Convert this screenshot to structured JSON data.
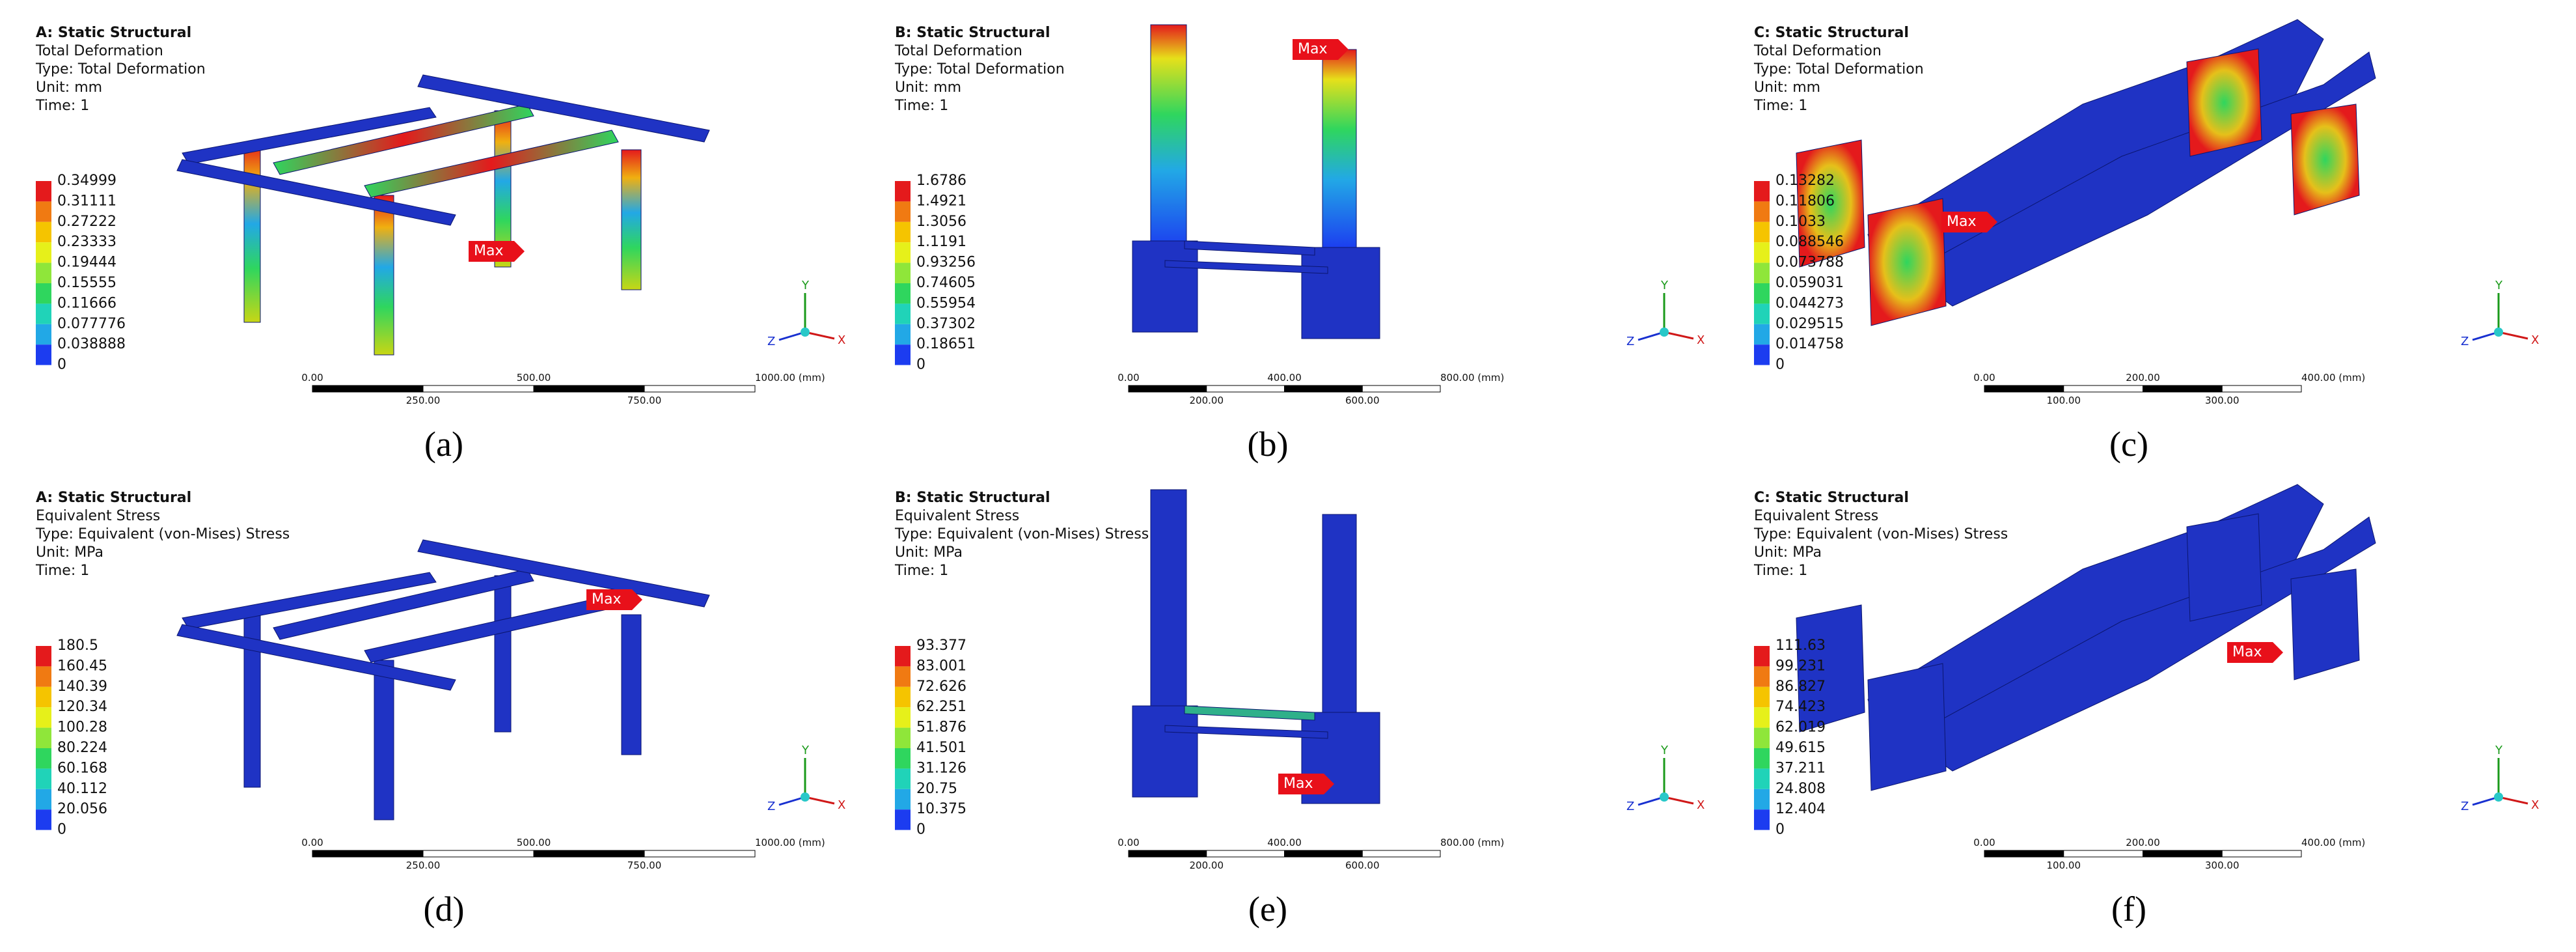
{
  "panels": [
    {
      "header": {
        "title": "A: Static Structural",
        "result": "Total Deformation",
        "type": "Type: Total Deformation",
        "unit": "Unit: mm",
        "time": "Time: 1"
      },
      "legend": [
        "0.34999",
        "0.31111",
        "0.27222",
        "0.23333",
        "0.19444",
        "0.15555",
        "0.11666",
        "0.077776",
        "0.038888",
        "0"
      ],
      "max_label": "Max",
      "scale_bar": {
        "top": [
          "0.00",
          "500.00",
          "1000.00 (mm)"
        ],
        "bottom": [
          "250.00",
          "750.00"
        ]
      },
      "triad": {
        "y": "Y",
        "z": "Z",
        "x": "X"
      },
      "caption": "(a)"
    },
    {
      "header": {
        "title": "B: Static Structural",
        "result": "Total Deformation",
        "type": "Type: Total Deformation",
        "unit": "Unit: mm",
        "time": "Time: 1"
      },
      "legend": [
        "1.6786",
        "1.4921",
        "1.3056",
        "1.1191",
        "0.93256",
        "0.74605",
        "0.55954",
        "0.37302",
        "0.18651",
        "0"
      ],
      "max_label": "Max",
      "scale_bar": {
        "top": [
          "0.00",
          "400.00",
          "800.00 (mm)"
        ],
        "bottom": [
          "200.00",
          "600.00"
        ]
      },
      "triad": {
        "y": "Y",
        "z": "Z",
        "x": "X"
      },
      "caption": "(b)"
    },
    {
      "header": {
        "title": "C: Static Structural",
        "result": "Total Deformation",
        "type": "Type: Total Deformation",
        "unit": "Unit: mm",
        "time": "Time: 1"
      },
      "legend": [
        "0.13282",
        "0.11806",
        "0.1033",
        "0.088546",
        "0.073788",
        "0.059031",
        "0.044273",
        "0.029515",
        "0.014758",
        "0"
      ],
      "max_label": "Max",
      "scale_bar": {
        "top": [
          "0.00",
          "200.00",
          "400.00 (mm)"
        ],
        "bottom": [
          "100.00",
          "300.00"
        ]
      },
      "triad": {
        "y": "Y",
        "z": "Z",
        "x": "X"
      },
      "caption": "(c)"
    },
    {
      "header": {
        "title": "A: Static Structural",
        "result": "Equivalent Stress",
        "type": "Type: Equivalent (von-Mises) Stress",
        "unit": "Unit: MPa",
        "time": "Time: 1"
      },
      "legend": [
        "180.5",
        "160.45",
        "140.39",
        "120.34",
        "100.28",
        "80.224",
        "60.168",
        "40.112",
        "20.056",
        "0"
      ],
      "max_label": "Max",
      "scale_bar": {
        "top": [
          "0.00",
          "500.00",
          "1000.00 (mm)"
        ],
        "bottom": [
          "250.00",
          "750.00"
        ]
      },
      "triad": {
        "y": "Y",
        "z": "Z",
        "x": "X"
      },
      "caption": "(d)"
    },
    {
      "header": {
        "title": "B: Static Structural",
        "result": "Equivalent Stress",
        "type": "Type: Equivalent (von-Mises) Stress",
        "unit": "Unit: MPa",
        "time": "Time: 1"
      },
      "legend": [
        "93.377",
        "83.001",
        "72.626",
        "62.251",
        "51.876",
        "41.501",
        "31.126",
        "20.75",
        "10.375",
        "0"
      ],
      "max_label": "Max",
      "scale_bar": {
        "top": [
          "0.00",
          "400.00",
          "800.00 (mm)"
        ],
        "bottom": [
          "200.00",
          "600.00"
        ]
      },
      "triad": {
        "y": "Y",
        "z": "Z",
        "x": "X"
      },
      "caption": "(e)"
    },
    {
      "header": {
        "title": "C: Static Structural",
        "result": "Equivalent Stress",
        "type": "Type: Equivalent (von-Mises) Stress",
        "unit": "Unit: MPa",
        "time": "Time: 1"
      },
      "legend": [
        "111.63",
        "99.231",
        "86.827",
        "74.423",
        "62.019",
        "49.615",
        "37.211",
        "24.808",
        "12.404",
        "0"
      ],
      "max_label": "Max",
      "scale_bar": {
        "top": [
          "0.00",
          "200.00",
          "400.00 (mm)"
        ],
        "bottom": [
          "100.00",
          "300.00"
        ]
      },
      "triad": {
        "y": "Y",
        "z": "Z",
        "x": "X"
      },
      "caption": "(f)"
    }
  ]
}
